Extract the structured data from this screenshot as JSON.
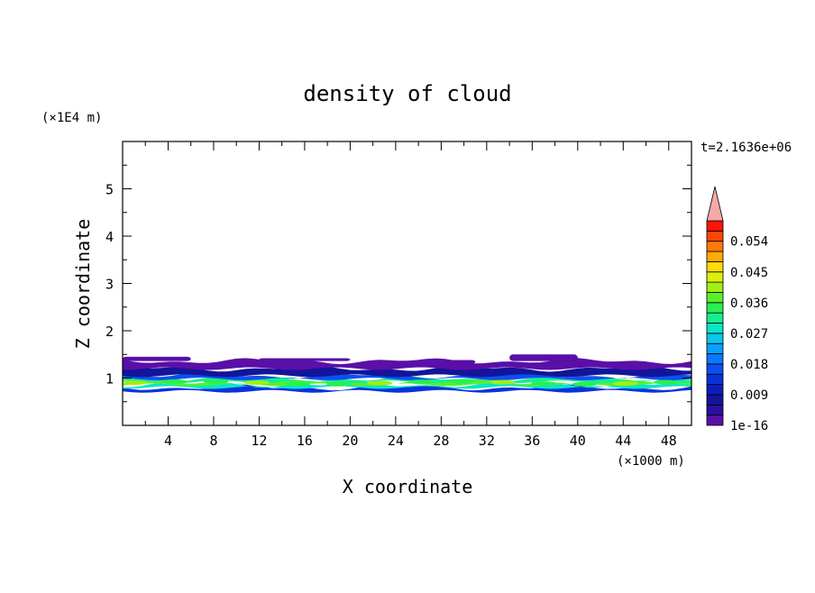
{
  "chart_data": {
    "type": "heatmap",
    "title": "density of cloud",
    "xlabel": "X coordinate",
    "ylabel": "Z coordinate",
    "x_unit": "(×1000 m)",
    "y_unit": "(×1E4 m)",
    "time_label": "t=2.1636e+06",
    "xlim": [
      0,
      50
    ],
    "ylim": [
      0,
      6
    ],
    "x_ticks": [
      4,
      8,
      12,
      16,
      20,
      24,
      28,
      32,
      36,
      40,
      44,
      48
    ],
    "y_ticks": [
      1,
      2,
      3,
      4,
      5
    ],
    "grid": false,
    "colorbar": {
      "position": "right",
      "labels": [
        "1e-16",
        "0.009",
        "0.018",
        "0.027",
        "0.036",
        "0.045",
        "0.054"
      ],
      "label_values": [
        0,
        0.009,
        0.018,
        0.027,
        0.036,
        0.045,
        0.054
      ],
      "levels": [
        0,
        0.003,
        0.006,
        0.009,
        0.012,
        0.015,
        0.018,
        0.021,
        0.024,
        0.027,
        0.03,
        0.033,
        0.036,
        0.039,
        0.042,
        0.045,
        0.048,
        0.051,
        0.054,
        0.057,
        0.06
      ],
      "colors": [
        "#5a0fa8",
        "#2c10a0",
        "#14149a",
        "#0a1ec0",
        "#0a32dc",
        "#0a50f0",
        "#0a78ff",
        "#0aa0ff",
        "#0ac8f0",
        "#0ae6c8",
        "#14f090",
        "#28f050",
        "#5af028",
        "#a0f014",
        "#dcf00a",
        "#ffdc0a",
        "#ffaa0a",
        "#ff780a",
        "#ff460a",
        "#ff140a"
      ],
      "extend_color": "#f4a8a8"
    },
    "field": {
      "description_rows": "cloud layer between roughly z=0.7 and z=1.5 (x1E4 m) across full x range",
      "layers": [
        {
          "z_range": [
            0.72,
            0.8
          ],
          "value": 0.012
        },
        {
          "z_range": [
            0.8,
            0.86
          ],
          "value": 0.027
        },
        {
          "z_range": [
            0.86,
            0.92
          ],
          "value": 0.036
        },
        {
          "z_range": [
            0.92,
            0.98
          ],
          "value": 0.03
        },
        {
          "z_range": [
            0.98,
            1.05
          ],
          "value": 0.015
        },
        {
          "z_range": [
            1.05,
            1.2
          ],
          "value": 0.006
        },
        {
          "z_range": [
            1.2,
            1.36
          ],
          "value": 0.002
        }
      ]
    }
  }
}
